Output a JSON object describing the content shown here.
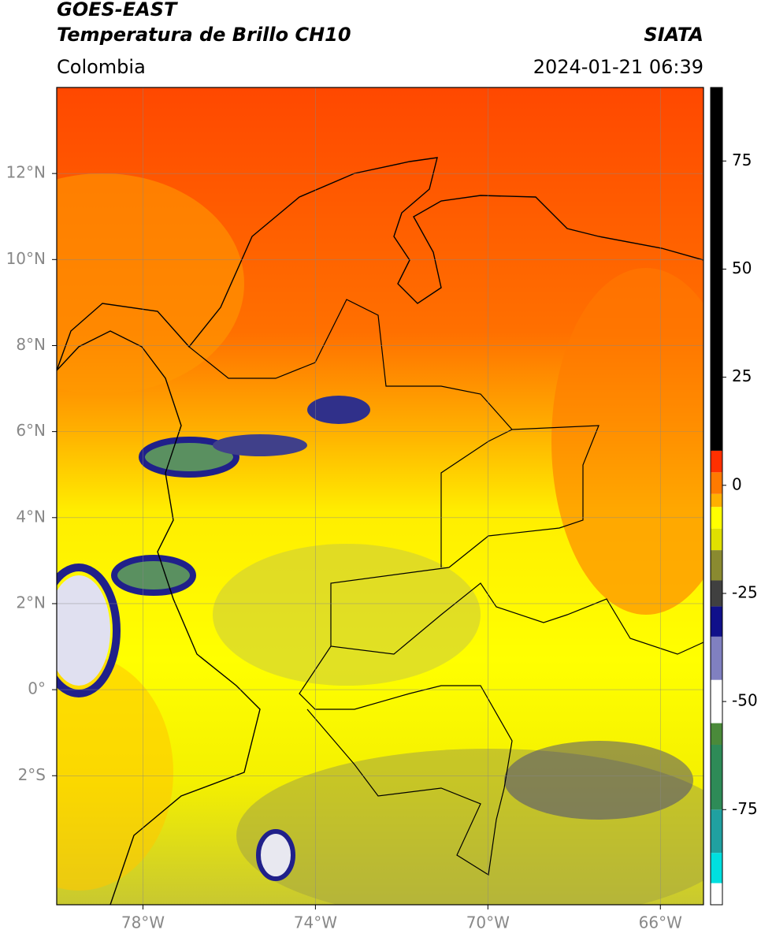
{
  "header": {
    "title": "GOES-EAST",
    "subtitle": "Temperatura de Brillo CH10",
    "region": "Colombia",
    "source": "SIATA",
    "datetime": "2024-01-21 06:39"
  },
  "map": {
    "xlim": [
      -80,
      -65
    ],
    "ylim": [
      -5,
      14
    ],
    "xticks": [
      {
        "value": -78,
        "label": "78°W"
      },
      {
        "value": -74,
        "label": "74°W"
      },
      {
        "value": -70,
        "label": "70°W"
      },
      {
        "value": -66,
        "label": "66°W"
      }
    ],
    "yticks": [
      {
        "value": 12,
        "label": "12°N"
      },
      {
        "value": 10,
        "label": "10°N"
      },
      {
        "value": 8,
        "label": "8°N"
      },
      {
        "value": 6,
        "label": "6°N"
      },
      {
        "value": 4,
        "label": "4°N"
      },
      {
        "value": 2,
        "label": "2°N"
      },
      {
        "value": 0,
        "label": "0°"
      },
      {
        "value": -2,
        "label": "2°S"
      }
    ],
    "grid": true
  },
  "colorbar": {
    "clim": [
      -97,
      92
    ],
    "ticks": [
      75,
      50,
      25,
      0,
      -25,
      -50,
      -75
    ],
    "stops": [
      {
        "value": -97,
        "color": "#ffffff"
      },
      {
        "value": -92,
        "color": "#00e0e0"
      },
      {
        "value": -85,
        "color": "#20a0a0"
      },
      {
        "value": -75,
        "color": "#2e8b57"
      },
      {
        "value": -60,
        "color": "#4a8a3a"
      },
      {
        "value": -55,
        "color": "#ffffff"
      },
      {
        "value": -45,
        "color": "#8080c0"
      },
      {
        "value": -35,
        "color": "#10108a"
      },
      {
        "value": -28,
        "color": "#404040"
      },
      {
        "value": -22,
        "color": "#8a8a30"
      },
      {
        "value": -15,
        "color": "#e0e000"
      },
      {
        "value": -10,
        "color": "#ffff00"
      },
      {
        "value": -5,
        "color": "#ffb000"
      },
      {
        "value": -2,
        "color": "#ff7a00"
      },
      {
        "value": 3,
        "color": "#ff3000"
      },
      {
        "value": 8,
        "color": "#000000"
      }
    ]
  }
}
